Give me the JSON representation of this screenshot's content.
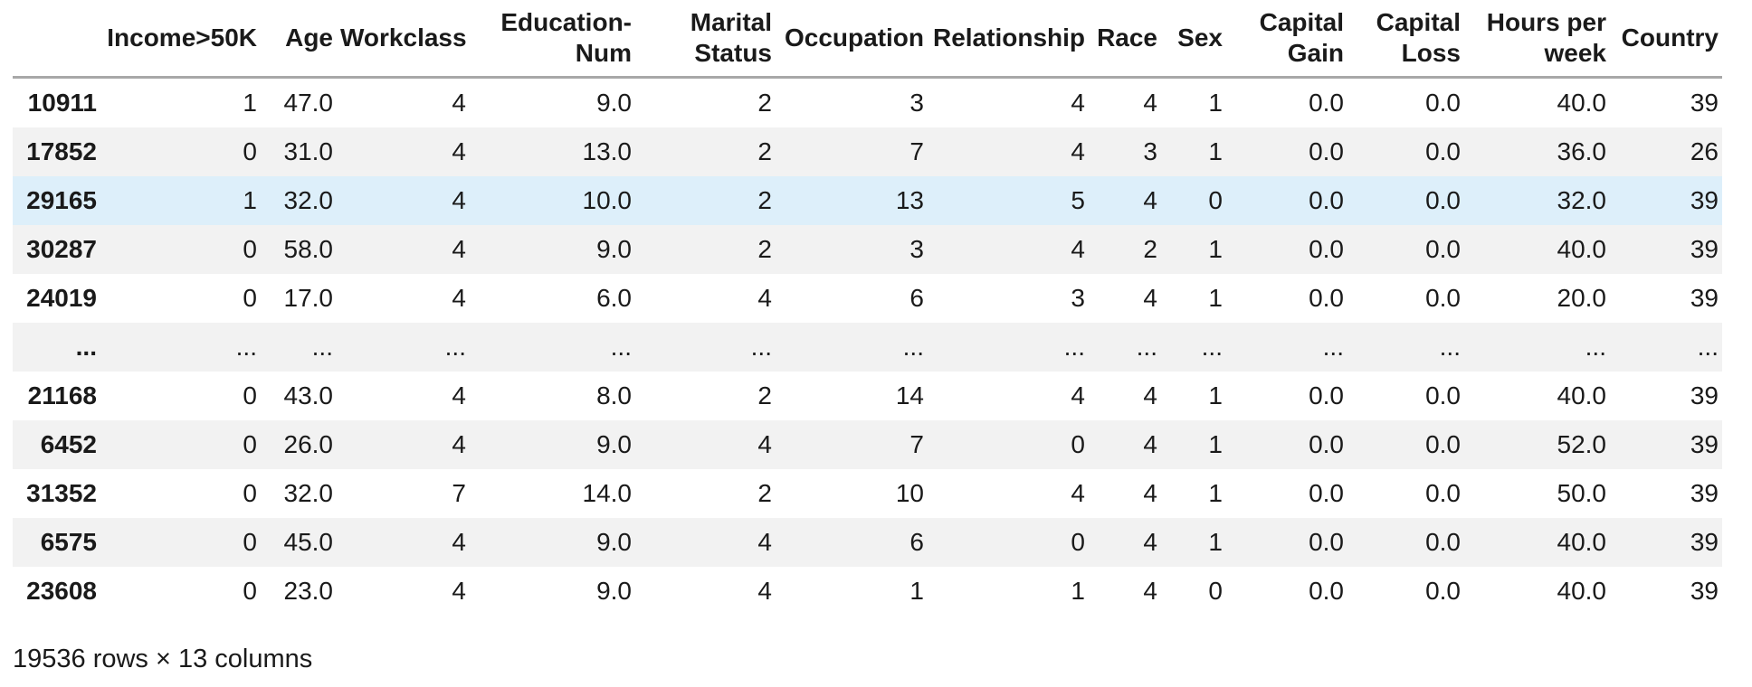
{
  "table": {
    "columns": [
      "",
      "Income>50K",
      "Age",
      "Workclass",
      "Education-Num",
      "Marital Status",
      "Occupation",
      "Relationship",
      "Race",
      "Sex",
      "Capital Gain",
      "Capital Loss",
      "Hours per week",
      "Country"
    ],
    "rows": [
      {
        "index": "10911",
        "highlight": false,
        "cells": [
          "1",
          "47.0",
          "4",
          "9.0",
          "2",
          "3",
          "4",
          "4",
          "1",
          "0.0",
          "0.0",
          "40.0",
          "39"
        ]
      },
      {
        "index": "17852",
        "highlight": false,
        "cells": [
          "0",
          "31.0",
          "4",
          "13.0",
          "2",
          "7",
          "4",
          "3",
          "1",
          "0.0",
          "0.0",
          "36.0",
          "26"
        ]
      },
      {
        "index": "29165",
        "highlight": true,
        "cells": [
          "1",
          "32.0",
          "4",
          "10.0",
          "2",
          "13",
          "5",
          "4",
          "0",
          "0.0",
          "0.0",
          "32.0",
          "39"
        ]
      },
      {
        "index": "30287",
        "highlight": false,
        "cells": [
          "0",
          "58.0",
          "4",
          "9.0",
          "2",
          "3",
          "4",
          "2",
          "1",
          "0.0",
          "0.0",
          "40.0",
          "39"
        ]
      },
      {
        "index": "24019",
        "highlight": false,
        "cells": [
          "0",
          "17.0",
          "4",
          "6.0",
          "4",
          "6",
          "3",
          "4",
          "1",
          "0.0",
          "0.0",
          "20.0",
          "39"
        ]
      },
      {
        "index": "...",
        "highlight": false,
        "cells": [
          "...",
          "...",
          "...",
          "...",
          "...",
          "...",
          "...",
          "...",
          "...",
          "...",
          "...",
          "...",
          "..."
        ]
      },
      {
        "index": "21168",
        "highlight": false,
        "cells": [
          "0",
          "43.0",
          "4",
          "8.0",
          "2",
          "14",
          "4",
          "4",
          "1",
          "0.0",
          "0.0",
          "40.0",
          "39"
        ]
      },
      {
        "index": "6452",
        "highlight": false,
        "cells": [
          "0",
          "26.0",
          "4",
          "9.0",
          "4",
          "7",
          "0",
          "4",
          "1",
          "0.0",
          "0.0",
          "52.0",
          "39"
        ]
      },
      {
        "index": "31352",
        "highlight": false,
        "cells": [
          "0",
          "32.0",
          "7",
          "14.0",
          "2",
          "10",
          "4",
          "4",
          "1",
          "0.0",
          "0.0",
          "50.0",
          "39"
        ]
      },
      {
        "index": "6575",
        "highlight": false,
        "cells": [
          "0",
          "45.0",
          "4",
          "9.0",
          "4",
          "6",
          "0",
          "4",
          "1",
          "0.0",
          "0.0",
          "40.0",
          "39"
        ]
      },
      {
        "index": "23608",
        "highlight": false,
        "cells": [
          "0",
          "23.0",
          "4",
          "9.0",
          "4",
          "1",
          "1",
          "4",
          "0",
          "0.0",
          "0.0",
          "40.0",
          "39"
        ]
      }
    ],
    "footer": "19536 rows × 13 columns",
    "colors": {
      "text": "#1a1a1a",
      "stripe": "#f2f2f2",
      "row_highlight": "#ddeffa",
      "header_border": "#a8a8a8"
    }
  }
}
